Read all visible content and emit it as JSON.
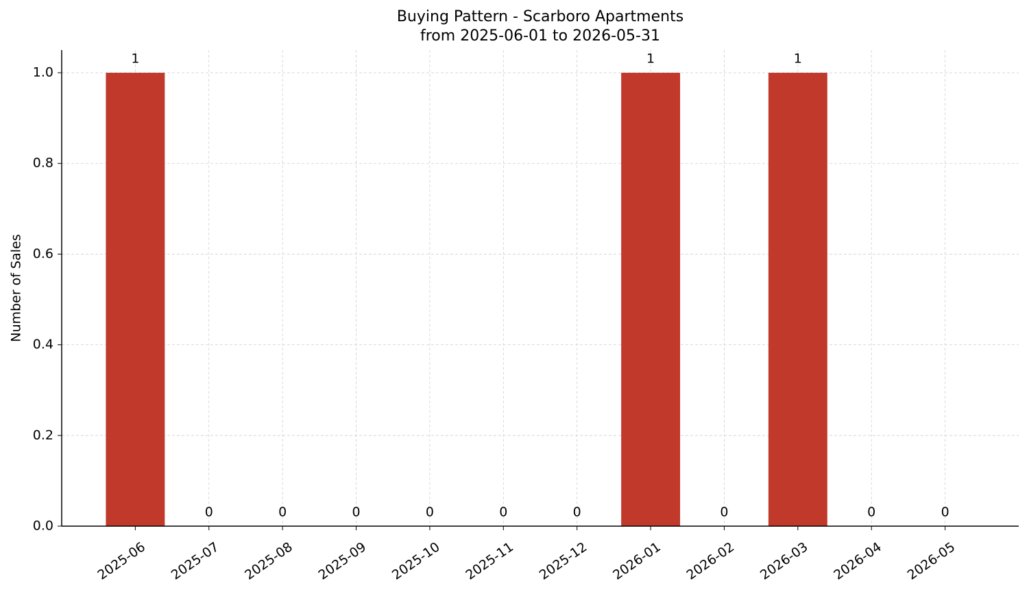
{
  "chart_data": {
    "type": "bar",
    "title": "Buying Pattern - Scarboro Apartments",
    "subtitle": "from 2025-06-01 to 2026-05-31",
    "y_label": "Number of Sales",
    "categories": [
      "2025-06",
      "2025-07",
      "2025-08",
      "2025-09",
      "2025-10",
      "2025-11",
      "2025-12",
      "2026-01",
      "2026-02",
      "2026-03",
      "2026-04",
      "2026-05"
    ],
    "values": [
      1,
      0,
      0,
      0,
      0,
      0,
      0,
      1,
      0,
      1,
      0,
      0
    ],
    "color": "#c0392b",
    "ylim": [
      0,
      1.05
    ],
    "yticks": [
      {
        "value": 0,
        "label": "0.0"
      },
      {
        "value": 0.2,
        "label": "0.2"
      },
      {
        "value": 0.4,
        "label": "0.4"
      },
      {
        "value": 0.6,
        "label": "0.6"
      },
      {
        "value": 0.8,
        "label": "0.8"
      },
      {
        "value": 1,
        "label": "1.0"
      }
    ],
    "grid": true
  }
}
